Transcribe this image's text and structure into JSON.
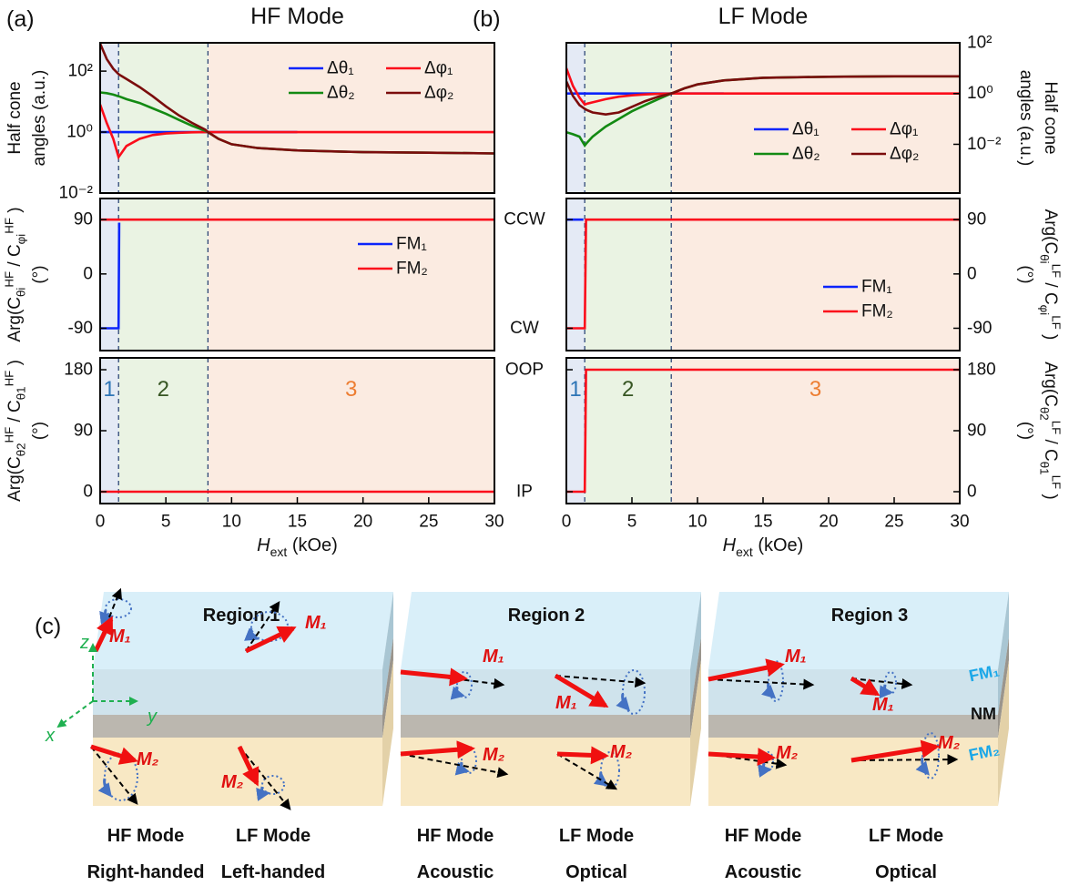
{
  "chart_data": [
    {
      "type": "line",
      "panel_label": "(a)",
      "title": "HF Mode",
      "ylabel": [
        [
          {
            "t": "Half cone"
          }
        ],
        [
          {
            "t": "angles (a.u.)"
          }
        ]
      ],
      "log_y": true,
      "ylim": [
        0.01,
        850
      ],
      "yticks": [
        {
          "value": 0.01,
          "label": "10⁻²"
        },
        {
          "value": 1,
          "label": "10⁰"
        },
        {
          "value": 100,
          "label": "10²"
        }
      ],
      "yaxis": "left",
      "xlim": [
        0,
        30
      ],
      "legend": "upper right",
      "legend_columns": 2,
      "regions": [
        {
          "from": 0,
          "to": 1.4,
          "color": "#e4eaf5"
        },
        {
          "from": 1.4,
          "to": 8.2,
          "color": "#eaf3e3"
        },
        {
          "from": 8.2,
          "to": 30,
          "color": "#fbebe1"
        }
      ],
      "x": [
        0,
        0.5,
        1,
        1.4,
        1.6,
        2,
        3,
        4,
        5,
        6,
        7,
        8,
        8.2,
        9,
        10,
        12,
        15,
        20,
        25,
        30
      ],
      "series": [
        {
          "name": "Δθ₁",
          "color": "#0b24fb",
          "values": [
            1,
            1,
            1,
            1,
            1,
            1,
            1,
            1,
            1,
            1,
            1,
            1,
            1,
            1,
            1,
            1,
            1,
            null,
            null,
            null
          ]
        },
        {
          "name": "Δφ₁",
          "color": "#fb0d1b",
          "values": [
            8,
            2,
            0.6,
            0.15,
            0.2,
            0.35,
            0.6,
            0.8,
            0.9,
            0.95,
            0.98,
            1,
            1,
            1,
            1,
            1,
            1,
            1,
            1,
            1
          ]
        },
        {
          "name": "Δθ₂",
          "color": "#138a13",
          "values": [
            20,
            19,
            17,
            15,
            14,
            12,
            9,
            6,
            4,
            2.5,
            1.6,
            1.1,
            1,
            0.6,
            0.4,
            0.3,
            0.25,
            0.22,
            0.21,
            0.2
          ]
        },
        {
          "name": "Δφ₂",
          "color": "#7b0c0c",
          "values": [
            800,
            250,
            120,
            80,
            70,
            55,
            30,
            15,
            7,
            3.5,
            2,
            1.2,
            1,
            0.6,
            0.4,
            0.3,
            0.25,
            0.22,
            0.21,
            0.2
          ]
        }
      ]
    },
    {
      "type": "line",
      "ylabel": [
        [
          {
            "t": "Arg(C"
          },
          {
            "t": "θi",
            "sub": true
          },
          {
            "t": "HF",
            "sup": true
          },
          {
            "t": " / C"
          },
          {
            "t": "φi",
            "sub": true
          },
          {
            "t": "HF",
            "sup": true
          },
          {
            "t": " )"
          }
        ],
        [
          {
            "t": "(°)"
          }
        ]
      ],
      "ylim": [
        -127,
        125
      ],
      "yticks": [
        -90,
        0,
        90
      ],
      "yaxis": "left",
      "xlim": [
        0,
        30
      ],
      "legend": "center right",
      "legend_columns": 1,
      "regions": [
        {
          "from": 0,
          "to": 1.4,
          "color": "#e4eaf5"
        },
        {
          "from": 1.4,
          "to": 8.2,
          "color": "#eaf3e3"
        },
        {
          "from": 8.2,
          "to": 30,
          "color": "#fbebe1"
        }
      ],
      "series": [
        {
          "name": "FM₁",
          "color": "#0b24fb",
          "x": [
            0,
            1.3,
            1.4,
            1.45
          ],
          "values": [
            -90,
            -90,
            -90,
            85
          ]
        },
        {
          "name": "FM₂",
          "color": "#fb0d1b",
          "x": [
            0,
            30
          ],
          "values": [
            90,
            90
          ]
        }
      ]
    },
    {
      "type": "line",
      "ylabel": [
        [
          {
            "t": "Arg(C"
          },
          {
            "t": "θ2",
            "sub": true
          },
          {
            "t": "HF",
            "sup": true
          },
          {
            "t": " / C"
          },
          {
            "t": "θ1",
            "sub": true
          },
          {
            "t": "HF",
            "sup": true
          },
          {
            "t": " )"
          }
        ],
        [
          {
            "t": "(°)"
          }
        ]
      ],
      "ylim": [
        -17.5,
        197.5
      ],
      "yticks": [
        0,
        90,
        180
      ],
      "yaxis": "left",
      "xlim": [
        0,
        30
      ],
      "xticks": [
        0,
        5,
        10,
        15,
        20,
        25,
        30
      ],
      "xlabel": [
        {
          "t": "H",
          "it": true
        },
        {
          "t": "ext",
          "sub": true
        },
        {
          "t": " (kOe)"
        }
      ],
      "regions": [
        {
          "from": 0,
          "to": 1.4,
          "color": "#e4eaf5",
          "label": "1",
          "label_color": "#2e75b6"
        },
        {
          "from": 1.4,
          "to": 8.2,
          "color": "#eaf3e3",
          "label": "2",
          "label_color": "#375623"
        },
        {
          "from": 8.2,
          "to": 30,
          "color": "#fbebe1",
          "label": "3",
          "label_color": "#ed7d31"
        }
      ],
      "series": [
        {
          "color": "#fb0d1b",
          "x": [
            0,
            30
          ],
          "values": [
            0,
            0
          ]
        }
      ]
    },
    {
      "type": "line",
      "panel_label": "(b)",
      "title": "LF Mode",
      "ylabel": [
        [
          {
            "t": "Half cone"
          }
        ],
        [
          {
            "t": "angles (a.u.)"
          }
        ]
      ],
      "log_y": true,
      "ylim": [
        0.00012,
        100
      ],
      "yticks": [
        {
          "value": 0.01,
          "label": "10⁻²"
        },
        {
          "value": 1,
          "label": "10⁰"
        },
        {
          "value": 100,
          "label": "10²"
        }
      ],
      "yaxis": "right",
      "xlim": [
        0,
        30
      ],
      "legend": "lower right",
      "legend_columns": 2,
      "regions": [
        {
          "from": 0,
          "to": 1.4,
          "color": "#e4eaf5"
        },
        {
          "from": 1.4,
          "to": 8,
          "color": "#eaf3e3"
        },
        {
          "from": 8,
          "to": 30,
          "color": "#fbebe1"
        }
      ],
      "x": [
        0,
        0.5,
        1,
        1.4,
        1.6,
        2,
        3,
        4,
        5,
        6,
        7,
        8,
        9,
        10,
        12,
        15,
        20,
        25,
        30
      ],
      "series": [
        {
          "name": "Δθ₁",
          "color": "#0b24fb",
          "values": [
            1,
            1,
            1,
            1,
            1,
            1,
            1,
            1,
            1,
            1,
            1,
            1,
            1,
            1,
            1,
            null,
            null,
            null,
            null
          ]
        },
        {
          "name": "Δφ₁",
          "color": "#fb0d1b",
          "values": [
            10,
            2,
            0.7,
            0.37,
            0.4,
            0.45,
            0.6,
            0.75,
            0.85,
            0.92,
            0.97,
            1,
            1,
            1,
            1,
            1,
            1,
            1,
            1
          ]
        },
        {
          "name": "Δθ₂",
          "color": "#138a13",
          "values": [
            0.03,
            0.025,
            0.02,
            0.009,
            0.012,
            0.02,
            0.05,
            0.1,
            0.2,
            0.35,
            0.6,
            1,
            1.6,
            2.3,
            3.3,
            4.2,
            4.6,
            4.8,
            4.8
          ]
        },
        {
          "name": "Δφ₂",
          "color": "#7b0c0c",
          "values": [
            3,
            0.8,
            0.35,
            0.25,
            0.22,
            0.18,
            0.15,
            0.18,
            0.3,
            0.5,
            0.75,
            1,
            1.6,
            2.3,
            3.3,
            4.2,
            4.6,
            4.8,
            4.8
          ]
        }
      ]
    },
    {
      "type": "line",
      "ylabel": [
        [
          {
            "t": "Arg(C"
          },
          {
            "t": "θi",
            "sub": true
          },
          {
            "t": "LF",
            "sup": true
          },
          {
            "t": " / C"
          },
          {
            "t": "φi",
            "sub": true
          },
          {
            "t": "LF",
            "sup": true
          },
          {
            "t": " )"
          }
        ],
        [
          {
            "t": "(°)"
          }
        ]
      ],
      "ylim": [
        -127,
        125
      ],
      "yticks": [
        -90,
        0,
        90
      ],
      "yaxis": "right",
      "xlim": [
        0,
        30
      ],
      "legend": "lower right",
      "legend_columns": 1,
      "side_labels": [
        {
          "value": 90,
          "label": "CCW"
        },
        {
          "value": -90,
          "label": "CW"
        }
      ],
      "regions": [
        {
          "from": 0,
          "to": 1.4,
          "color": "#e4eaf5"
        },
        {
          "from": 1.4,
          "to": 8,
          "color": "#eaf3e3"
        },
        {
          "from": 8,
          "to": 30,
          "color": "#fbebe1"
        }
      ],
      "series": [
        {
          "name": "FM₁",
          "color": "#0b24fb",
          "x": [
            0,
            1.3
          ],
          "values": [
            90,
            90
          ]
        },
        {
          "name": "FM₂",
          "color": "#fb0d1b",
          "x": [
            0,
            1.4,
            1.5,
            30
          ],
          "values": [
            -90,
            -90,
            90,
            90
          ]
        }
      ]
    },
    {
      "type": "line",
      "ylabel": [
        [
          {
            "t": "Arg(C"
          },
          {
            "t": "θ2",
            "sub": true
          },
          {
            "t": "LF",
            "sup": true
          },
          {
            "t": " / C"
          },
          {
            "t": "θ1",
            "sub": true
          },
          {
            "t": "LF",
            "sup": true
          },
          {
            "t": " )"
          }
        ],
        [
          {
            "t": "(°)"
          }
        ]
      ],
      "ylim": [
        -17.5,
        197.5
      ],
      "yticks": [
        0,
        90,
        180
      ],
      "yaxis": "right",
      "xlim": [
        0,
        30
      ],
      "xticks": [
        0,
        5,
        10,
        15,
        20,
        25,
        30
      ],
      "xlabel": [
        {
          "t": "H",
          "it": true
        },
        {
          "t": "ext",
          "sub": true
        },
        {
          "t": " (kOe)"
        }
      ],
      "side_labels": [
        {
          "value": 180,
          "label": "OOP"
        },
        {
          "value": 0,
          "label": "IP"
        }
      ],
      "regions": [
        {
          "from": 0,
          "to": 1.4,
          "color": "#e4eaf5",
          "label": "1",
          "label_color": "#2e75b6"
        },
        {
          "from": 1.4,
          "to": 8,
          "color": "#eaf3e3",
          "label": "2",
          "label_color": "#375623"
        },
        {
          "from": 8,
          "to": 30,
          "color": "#fbebe1",
          "label": "3",
          "label_color": "#ed7d31"
        }
      ],
      "series": [
        {
          "color": "#fb0d1b",
          "x": [
            0,
            1.4,
            1.5,
            30
          ],
          "values": [
            0,
            0,
            180,
            180
          ]
        }
      ]
    }
  ],
  "figure": {
    "panel_label": "(c)",
    "regions": [
      {
        "title": "Region 1",
        "modes": [
          [
            "HF Mode",
            "Right-handed"
          ],
          [
            "LF Mode",
            "Left-handed"
          ]
        ]
      },
      {
        "title": "Region 2",
        "modes": [
          [
            "HF Mode",
            "Acoustic"
          ],
          [
            "LF Mode",
            "Optical"
          ]
        ]
      },
      {
        "title": "Region 3",
        "modes": [
          [
            "HF Mode",
            "Acoustic"
          ],
          [
            "LF Mode",
            "Optical"
          ]
        ]
      }
    ],
    "moments": [
      "M₁",
      "M₂"
    ],
    "layers": [
      "FM₁",
      "NM",
      "FM₂"
    ],
    "axes": [
      "z",
      "x",
      "y"
    ]
  }
}
